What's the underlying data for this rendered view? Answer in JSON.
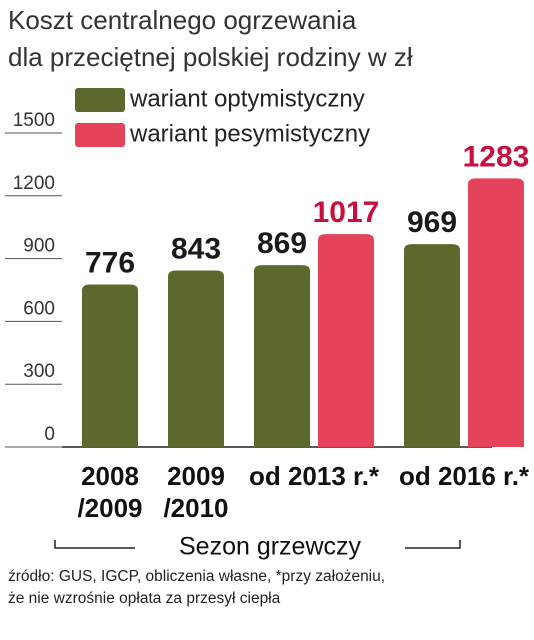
{
  "chart_data": {
    "type": "bar",
    "title": "Koszt centralnego ogrzewania\ndla przeciętnej polskiej rodziny w zł",
    "categories": [
      "2008\n/2009",
      "2009\n/2010",
      "od 2013 r.*",
      "od 2016 r.*"
    ],
    "series": [
      {
        "name": "wariant optymistyczny",
        "color": "#5b6a2c",
        "label_color": "#1a1a1a",
        "values": [
          776,
          843,
          869,
          969
        ]
      },
      {
        "name": "wariant pesymistyczny",
        "color": "#e5425c",
        "label_color": "#c8103e",
        "values": [
          null,
          null,
          1017,
          1283
        ]
      }
    ],
    "ylim": [
      0,
      1500
    ],
    "yticks": [
      0,
      300,
      600,
      900,
      1200,
      1500
    ],
    "xlabel": "Sezon grzewczy",
    "source": "źródło: GUS, IGCP, obliczenia własne, *przy założeniu,\nże nie wzrośnie opłata za przesył ciepła"
  }
}
